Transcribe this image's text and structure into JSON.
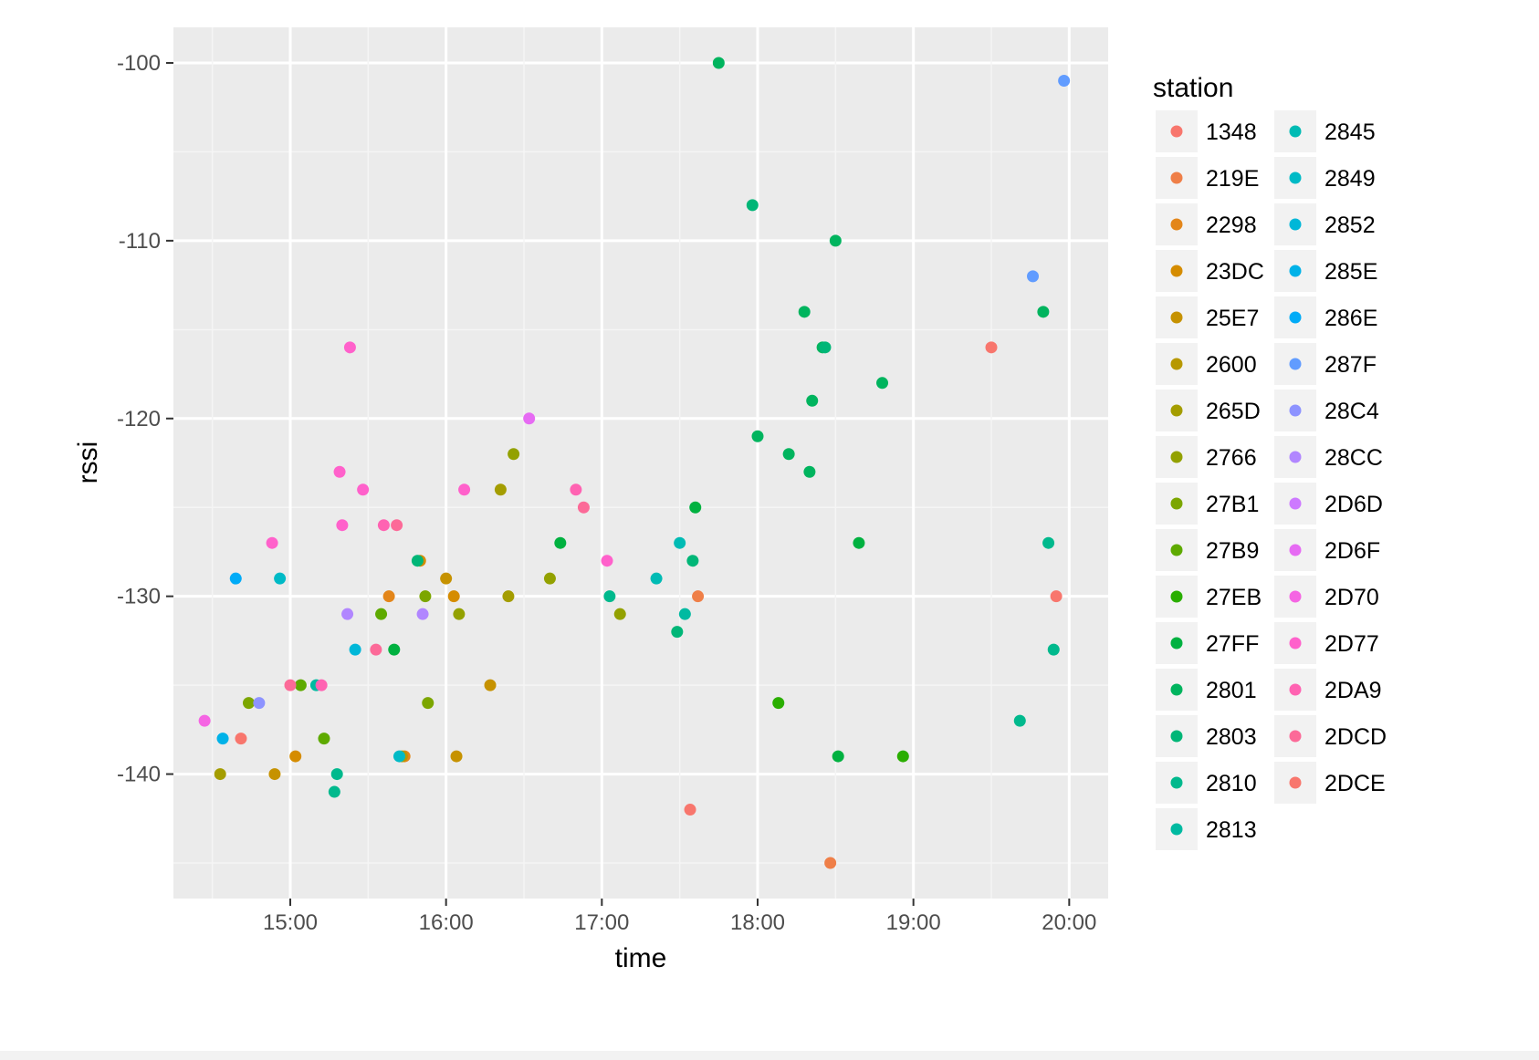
{
  "chart_data": {
    "type": "scatter",
    "xlabel": "time",
    "ylabel": "rssi",
    "x_ticks": [
      "15:00",
      "16:00",
      "17:00",
      "18:00",
      "19:00",
      "20:00"
    ],
    "y_ticks": [
      -100,
      -110,
      -120,
      -130,
      -140
    ],
    "xlim": [
      "14:15",
      "20:15"
    ],
    "ylim": [
      -147,
      -98
    ],
    "grid": true,
    "legend": {
      "title": "station",
      "placement": "right",
      "columns": 2
    },
    "series": [
      {
        "name": "1348",
        "color": "#F8766D",
        "points": [
          [
            "19:30",
            -116
          ],
          [
            "19:55",
            -130
          ]
        ]
      },
      {
        "name": "219E",
        "color": "#EF7F48",
        "points": [
          [
            "18:28",
            -145
          ],
          [
            "17:37",
            -130
          ]
        ]
      },
      {
        "name": "2298",
        "color": "#E3861A",
        "points": [
          [
            "15:38",
            -130
          ],
          [
            "15:44",
            -139
          ]
        ]
      },
      {
        "name": "23DC",
        "color": "#D58C00",
        "points": [
          [
            "15:02",
            -139
          ],
          [
            "15:50",
            -128
          ],
          [
            "16:03",
            -130
          ]
        ]
      },
      {
        "name": "25E7",
        "color": "#C69200",
        "points": [
          [
            "16:00",
            -129
          ],
          [
            "16:17",
            -135
          ],
          [
            "16:04",
            -139
          ],
          [
            "14:54",
            -140
          ]
        ]
      },
      {
        "name": "2600",
        "color": "#B79800",
        "points": [
          [
            "15:43",
            -139
          ]
        ]
      },
      {
        "name": "265D",
        "color": "#A49D00",
        "points": [
          [
            "14:33",
            -140
          ],
          [
            "16:21",
            -124
          ],
          [
            "16:24",
            -130
          ]
        ]
      },
      {
        "name": "2766",
        "color": "#93A100",
        "points": [
          [
            "16:26",
            -122
          ],
          [
            "16:40",
            -129
          ],
          [
            "17:07",
            -131
          ],
          [
            "16:05",
            -131
          ]
        ]
      },
      {
        "name": "27B1",
        "color": "#7CA600",
        "points": [
          [
            "14:44",
            -136
          ],
          [
            "15:53",
            -136
          ],
          [
            "15:52",
            -130
          ]
        ]
      },
      {
        "name": "27B9",
        "color": "#5EAA00",
        "points": [
          [
            "15:04",
            -135
          ],
          [
            "15:13",
            -138
          ],
          [
            "15:35",
            -131
          ]
        ]
      },
      {
        "name": "27EB",
        "color": "#2AAE00",
        "points": [
          [
            "18:08",
            -136
          ],
          [
            "18:56",
            -139
          ]
        ]
      },
      {
        "name": "27FF",
        "color": "#00B140",
        "points": [
          [
            "16:44",
            -127
          ],
          [
            "15:40",
            -133
          ],
          [
            "18:39",
            -127
          ],
          [
            "18:31",
            -139
          ],
          [
            "17:36",
            -125
          ]
        ]
      },
      {
        "name": "2801",
        "color": "#00B45E",
        "points": [
          [
            "17:45",
            -100
          ],
          [
            "18:30",
            -110
          ],
          [
            "18:18",
            -114
          ],
          [
            "18:25",
            -116
          ],
          [
            "18:21",
            -119
          ],
          [
            "18:48",
            -118
          ],
          [
            "18:00",
            -121
          ],
          [
            "18:12",
            -122
          ],
          [
            "18:20",
            -123
          ],
          [
            "19:50",
            -114
          ]
        ]
      },
      {
        "name": "2803",
        "color": "#00B677",
        "points": [
          [
            "17:58",
            -108
          ],
          [
            "18:26",
            -116
          ],
          [
            "17:35",
            -128
          ],
          [
            "17:29",
            -132
          ],
          [
            "15:49",
            -128
          ]
        ]
      },
      {
        "name": "2810",
        "color": "#00B98D",
        "points": [
          [
            "19:41",
            -137
          ],
          [
            "19:52",
            -127
          ],
          [
            "19:54",
            -133
          ],
          [
            "15:18",
            -140
          ],
          [
            "15:17",
            -141
          ],
          [
            "17:03",
            -130
          ]
        ]
      },
      {
        "name": "2813",
        "color": "#00BAA1",
        "points": [
          [
            "15:10",
            -135
          ],
          [
            "17:32",
            -131
          ]
        ]
      },
      {
        "name": "2845",
        "color": "#00BBB4",
        "points": [
          [
            "17:30",
            -127
          ],
          [
            "17:21",
            -129
          ]
        ]
      },
      {
        "name": "2849",
        "color": "#00BAC6",
        "points": [
          [
            "14:56",
            -129
          ],
          [
            "15:42",
            -139
          ]
        ]
      },
      {
        "name": "2852",
        "color": "#00B7D8",
        "points": [
          [
            "15:25",
            -133
          ]
        ]
      },
      {
        "name": "285E",
        "color": "#00B2E8",
        "points": [
          [
            "14:34",
            -138
          ]
        ]
      },
      {
        "name": "286E",
        "color": "#00ABF7",
        "points": [
          [
            "14:39",
            -129
          ]
        ]
      },
      {
        "name": "287F",
        "color": "#619CFF",
        "points": [
          [
            "19:58",
            -101
          ],
          [
            "19:46",
            -112
          ]
        ]
      },
      {
        "name": "28C4",
        "color": "#8D93FF",
        "points": [
          [
            "14:48",
            -136
          ]
        ]
      },
      {
        "name": "28CC",
        "color": "#B186FF",
        "points": [
          [
            "15:22",
            -131
          ],
          [
            "15:51",
            -131
          ]
        ]
      },
      {
        "name": "2D6D",
        "color": "#CD79FF",
        "points": []
      },
      {
        "name": "2D6F",
        "color": "#E66BF3",
        "points": [
          [
            "16:32",
            -120
          ]
        ]
      },
      {
        "name": "2D70",
        "color": "#F565E3",
        "points": [
          [
            "14:27",
            -137
          ]
        ]
      },
      {
        "name": "2D77",
        "color": "#FF61CB",
        "points": [
          [
            "15:23",
            -116
          ],
          [
            "15:19",
            -123
          ],
          [
            "15:20",
            -126
          ],
          [
            "15:28",
            -124
          ],
          [
            "16:07",
            -124
          ],
          [
            "17:02",
            -128
          ],
          [
            "14:53",
            -127
          ]
        ]
      },
      {
        "name": "2DA9",
        "color": "#FF63B2",
        "points": [
          [
            "15:36",
            -126
          ],
          [
            "16:50",
            -124
          ],
          [
            "15:12",
            -135
          ]
        ]
      },
      {
        "name": "2DCD",
        "color": "#FC6A98",
        "points": [
          [
            "15:41",
            -126
          ],
          [
            "16:53",
            -125
          ],
          [
            "15:33",
            -133
          ],
          [
            "15:00",
            -135
          ]
        ]
      },
      {
        "name": "2DCE",
        "color": "#F8766D",
        "points": [
          [
            "14:41",
            -138
          ],
          [
            "17:34",
            -142
          ]
        ]
      }
    ]
  }
}
